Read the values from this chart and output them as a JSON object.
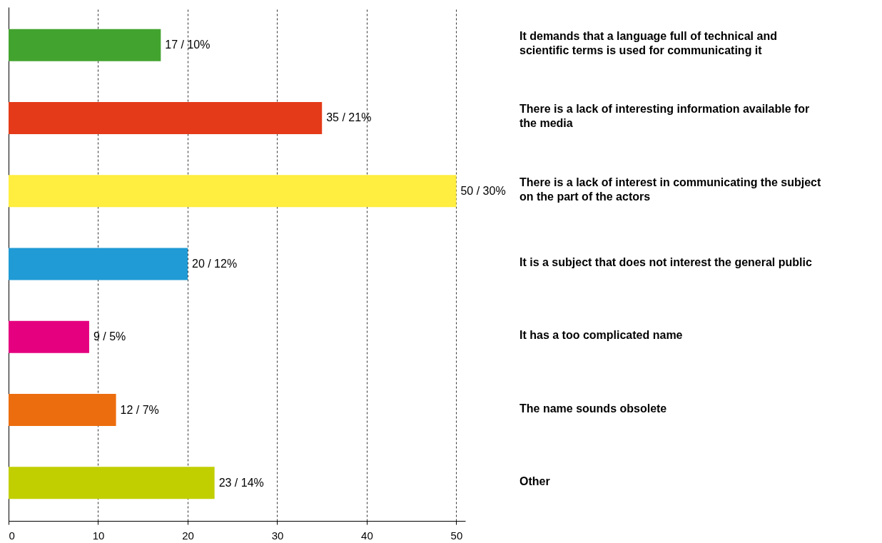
{
  "chart_data": {
    "type": "bar",
    "orientation": "horizontal",
    "categories": [
      "It demands that a language full of technical and scientific terms is used for communicating it",
      "There is a lack of interesting information available for the media",
      "There is a lack of interest in communicating the subject on the part of the actors",
      "It is a subject that does not interest the general public",
      "It has a too complicated name",
      "The name sounds obsolete",
      "Other"
    ],
    "values": [
      17,
      35,
      50,
      20,
      9,
      12,
      23
    ],
    "colors": [
      "#43a32f",
      "#e43a19",
      "#ffed3f",
      "#209bd5",
      "#e4007f",
      "#ec6d0d",
      "#c1cf00"
    ],
    "value_labels": [
      "17 / 10%",
      "35 / 21%",
      "50 / 30%",
      "20 / 12%",
      "9 / 5%",
      "12 / 7%",
      "23 / 14%"
    ],
    "xlim": [
      0,
      51
    ],
    "xticks": [
      0,
      10,
      20,
      30,
      40,
      50
    ],
    "grid": "x"
  }
}
